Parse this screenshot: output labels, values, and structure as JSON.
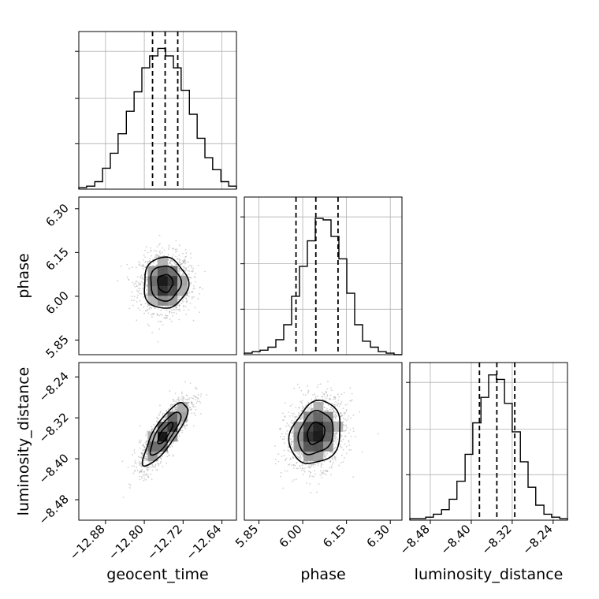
{
  "chart_data": {
    "type": "corner",
    "parameters": [
      "geocent_time",
      "phase",
      "luminosity_distance"
    ],
    "ranges": {
      "geocent_time": [
        -12.935,
        -12.61
      ],
      "phase": [
        5.8,
        6.34
      ],
      "luminosity_distance": [
        -8.52,
        -8.212
      ]
    },
    "ticks": {
      "geocent_time": [
        -12.88,
        -12.8,
        -12.72,
        -12.64
      ],
      "phase": [
        5.85,
        6.0,
        6.15,
        6.3
      ],
      "luminosity_distance": [
        -8.48,
        -8.4,
        -8.32,
        -8.24
      ]
    },
    "tick_labels": {
      "geocent_time": [
        "−12.88",
        "−12.80",
        "−12.72",
        "−12.64"
      ],
      "phase": [
        "5.85",
        "6.00",
        "6.15",
        "6.30"
      ],
      "luminosity_distance": [
        "−8.48",
        "−8.40",
        "−8.32",
        "−8.24"
      ]
    },
    "quantiles": {
      "geocent_time": [
        -12.783,
        -12.757,
        -12.731
      ],
      "phase": [
        5.977,
        6.045,
        6.121
      ],
      "luminosity_distance": [
        -8.384,
        -8.35,
        -8.315
      ]
    },
    "histograms": {
      "geocent_time": {
        "edges": [
          -12.935,
          -12.919,
          -12.902,
          -12.886,
          -12.87,
          -12.854,
          -12.837,
          -12.821,
          -12.805,
          -12.789,
          -12.772,
          -12.756,
          -12.74,
          -12.724,
          -12.707,
          -12.691,
          -12.675,
          -12.659,
          -12.642,
          -12.626,
          -12.61
        ],
        "counts": [
          0.01,
          0.02,
          0.05,
          0.14,
          0.24,
          0.37,
          0.52,
          0.65,
          0.81,
          0.89,
          0.94,
          0.89,
          0.81,
          0.66,
          0.5,
          0.34,
          0.21,
          0.13,
          0.05,
          0.02
        ]
      },
      "phase": {
        "edges": [
          5.8,
          5.827,
          5.854,
          5.881,
          5.908,
          5.935,
          5.962,
          5.989,
          6.016,
          6.043,
          6.07,
          6.097,
          6.124,
          6.151,
          6.178,
          6.205,
          6.232,
          6.259,
          6.286,
          6.313,
          6.34
        ],
        "counts": [
          0.01,
          0.02,
          0.03,
          0.05,
          0.1,
          0.2,
          0.39,
          0.59,
          0.76,
          0.91,
          0.9,
          0.79,
          0.64,
          0.41,
          0.2,
          0.09,
          0.05,
          0.02,
          0.01,
          0.0
        ]
      },
      "luminosity_distance": {
        "edges": [
          -8.52,
          -8.505,
          -8.489,
          -8.474,
          -8.458,
          -8.443,
          -8.428,
          -8.412,
          -8.397,
          -8.381,
          -8.366,
          -8.351,
          -8.335,
          -8.32,
          -8.304,
          -8.289,
          -8.274,
          -8.258,
          -8.243,
          -8.227,
          -8.212
        ],
        "counts": [
          0.01,
          0.01,
          0.02,
          0.04,
          0.07,
          0.14,
          0.26,
          0.44,
          0.65,
          0.82,
          0.97,
          0.94,
          0.78,
          0.59,
          0.39,
          0.22,
          0.1,
          0.04,
          0.02,
          0.01
        ]
      }
    },
    "contours": [
      {
        "x": "geocent_time",
        "y": "phase",
        "center": [
          -12.757,
          6.045
        ],
        "sigma": [
          0.026,
          0.05
        ],
        "correlation": 0.0
      },
      {
        "x": "geocent_time",
        "y": "luminosity_distance",
        "center": [
          -12.757,
          -8.35
        ],
        "sigma": [
          0.026,
          0.035
        ],
        "correlation": 0.82
      },
      {
        "x": "phase",
        "y": "luminosity_distance",
        "center": [
          6.045,
          -8.35
        ],
        "sigma": [
          0.05,
          0.035
        ],
        "correlation": 0.2
      }
    ],
    "grid": true
  }
}
